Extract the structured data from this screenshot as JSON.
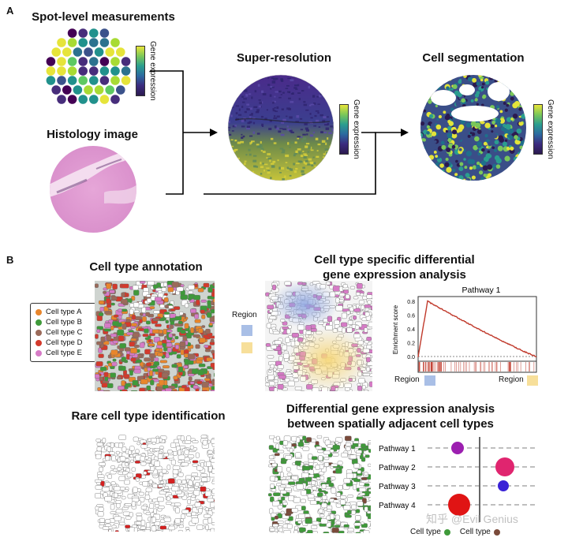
{
  "panel_a": {
    "letter": "A",
    "spot_title": "Spot-level measurements",
    "histology_title": "Histology image",
    "superres_title": "Super-resolution",
    "cellseg_title": "Cell segmentation",
    "colorbar_label": "Gene expression"
  },
  "panel_b": {
    "letter": "B",
    "annotation_title": "Cell type annotation",
    "legend": [
      {
        "label": "Cell type A",
        "color": "#e8862c"
      },
      {
        "label": "Cell type B",
        "color": "#3f9a3a"
      },
      {
        "label": "Cell type C",
        "color": "#9b6a5a"
      },
      {
        "label": "Cell type D",
        "color": "#d33a2c"
      },
      {
        "label": "Cell type E",
        "color": "#d67bc6"
      }
    ],
    "dge_title_line1": "Cell type specific differential",
    "dge_title_line2": "gene expression analysis",
    "region_label": "Region",
    "region_colors": {
      "blue": "#a9bfe6",
      "yellow": "#f7df9a"
    },
    "enrichment": {
      "title": "Pathway 1",
      "ylabel": "Enrichment score",
      "yticks": [
        "0.8",
        "0.6",
        "0.4",
        "0.2",
        "0.0"
      ],
      "left_region": "Region",
      "right_region": "Region"
    },
    "rare_title": "Rare cell type identification",
    "adjacent_title_line1": "Differential gene expression analysis",
    "adjacent_title_line2": "between spatially adjacent cell types",
    "pathways": [
      {
        "label": "Pathway 1",
        "color": "#9c1fb0"
      },
      {
        "label": "Pathway 2",
        "color": "#e0256f"
      },
      {
        "label": "Pathway 3",
        "color": "#3a22d6"
      },
      {
        "label": "Pathway 4",
        "color": "#e01414"
      }
    ],
    "bottom_legend": [
      {
        "label": "Cell type",
        "color": "#3f9a3a"
      },
      {
        "label": "Cell type",
        "color": "#7a4a3a"
      }
    ]
  },
  "watermark": "知乎 @Evil Genius"
}
